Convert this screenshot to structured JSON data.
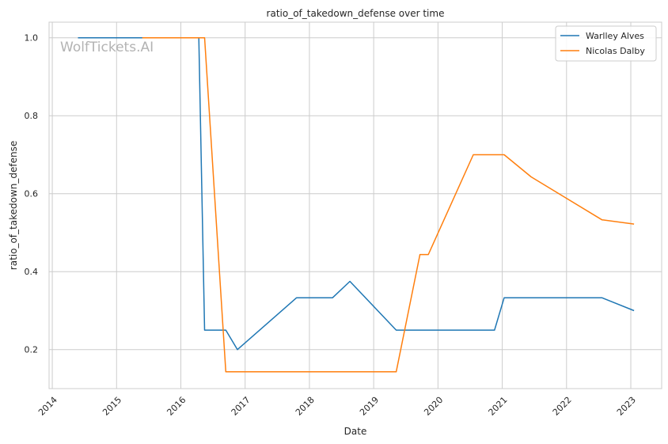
{
  "chart_data": {
    "type": "line",
    "title": "ratio_of_takedown_defense over time",
    "xlabel": "Date",
    "ylabel": "ratio_of_takedown_defense",
    "watermark": "WolfTickets.AI",
    "xlim": [
      2013.95,
      2023.48
    ],
    "ylim": [
      0.1,
      1.04
    ],
    "x_ticks": [
      2014,
      2015,
      2016,
      2017,
      2018,
      2019,
      2020,
      2021,
      2022,
      2023
    ],
    "x_tick_labels": [
      "2014",
      "2015",
      "2016",
      "2017",
      "2018",
      "2019",
      "2020",
      "2021",
      "2022",
      "2023"
    ],
    "y_ticks": [
      0.2,
      0.4,
      0.6,
      0.8,
      1.0
    ],
    "y_tick_labels": [
      "0.2",
      "0.4",
      "0.6",
      "0.8",
      "1.0"
    ],
    "grid": true,
    "legend_position": "top-right",
    "series": [
      {
        "name": "Warlley Alves",
        "color": "#1f77b4",
        "x": [
          2014.4,
          2015.4,
          2016.28,
          2016.37,
          2016.7,
          2016.88,
          2017.8,
          2018.36,
          2018.63,
          2019.35,
          2020.3,
          2020.88,
          2021.03,
          2022.55,
          2023.05
        ],
        "y": [
          1.0,
          1.0,
          1.0,
          0.25,
          0.25,
          0.2,
          0.333,
          0.333,
          0.375,
          0.25,
          0.25,
          0.25,
          0.333,
          0.333,
          0.3
        ]
      },
      {
        "name": "Nicolas Dalby",
        "color": "#ff7f0e",
        "x": [
          2015.4,
          2016.37,
          2016.7,
          2019.35,
          2019.72,
          2019.85,
          2020.55,
          2021.03,
          2021.45,
          2022.55,
          2023.05
        ],
        "y": [
          1.0,
          1.0,
          0.143,
          0.143,
          0.444,
          0.444,
          0.7,
          0.7,
          0.643,
          0.533,
          0.522
        ]
      }
    ]
  }
}
